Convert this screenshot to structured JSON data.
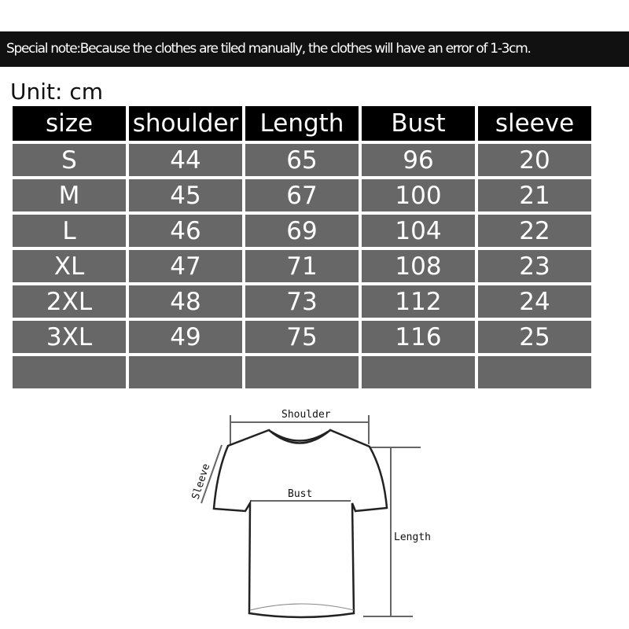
{
  "note": "Special note:Because the clothes are tiled manually, the clothes will have an error of 1-3cm.",
  "unit": "Unit: cm",
  "table": {
    "headers": [
      "size",
      "shoulder",
      "Length",
      "Bust",
      "sleeve"
    ],
    "rows": [
      [
        "S",
        "44",
        "65",
        "96",
        "20"
      ],
      [
        "M",
        "45",
        "67",
        "100",
        "21"
      ],
      [
        "L",
        "46",
        "69",
        "104",
        "22"
      ],
      [
        "XL",
        "47",
        "71",
        "108",
        "23"
      ],
      [
        "2XL",
        "48",
        "73",
        "112",
        "24"
      ],
      [
        "3XL",
        "49",
        "75",
        "116",
        "25"
      ],
      [
        "",
        "",
        "",
        "",
        ""
      ]
    ]
  },
  "diagram": {
    "shoulder": "Shoulder",
    "bust": "Bust",
    "length": "Length",
    "sleeve": "Sleeve"
  }
}
